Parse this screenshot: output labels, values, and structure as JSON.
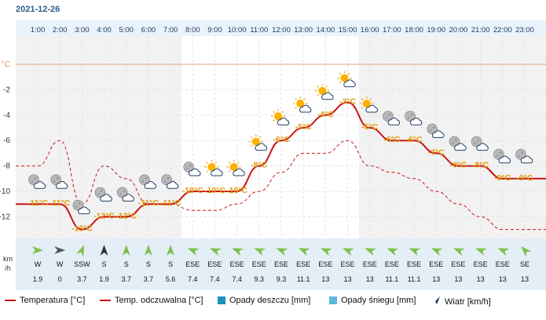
{
  "header": {
    "date": "2021-12-26"
  },
  "chart_data": {
    "type": "line",
    "hours": [
      "1:00",
      "2:00",
      "3:00",
      "4:00",
      "5:00",
      "6:00",
      "7:00",
      "8:00",
      "9:00",
      "10:00",
      "11:00",
      "12:00",
      "13:00",
      "14:00",
      "15:00",
      "16:00",
      "17:00",
      "18:00",
      "19:00",
      "20:00",
      "21:00",
      "22:00",
      "23:00"
    ],
    "y_unit": "°C",
    "y_ticks": [
      -2,
      -4,
      -6,
      -8,
      -10,
      -12
    ],
    "ylim": [
      -14.2,
      0
    ],
    "series": [
      {
        "name": "Temperatura [°C]",
        "style": "solid",
        "color": "#c81414",
        "values": [
          -11,
          -11,
          -13,
          -12,
          -12,
          -11,
          -11,
          -10,
          -10,
          -10,
          -8,
          -6,
          -5,
          -4,
          -3,
          -5,
          -6,
          -6,
          -7,
          -8,
          -8,
          -9,
          -9
        ]
      },
      {
        "name": "Temp. odczuwalna [°C]",
        "style": "dashed",
        "color": "#c81414",
        "values": [
          -8,
          -6,
          -11,
          -8,
          -9,
          -11,
          -11,
          -11.5,
          -11.5,
          -11,
          -10,
          -8.5,
          -7,
          -7,
          -6,
          -8,
          -8.5,
          -9,
          -10,
          -11,
          -12,
          -13,
          -13
        ]
      }
    ],
    "temp_labels": [
      "-11°C",
      "-11°C",
      "-13°C",
      "-12°C",
      "-12°C",
      "-11°C",
      "-11°C",
      "-10°C",
      "-10°C",
      "-10°C",
      "-8°C",
      "-6°C",
      "-5°C",
      "-4°C",
      "-3°C",
      "-5°C",
      "-6°C",
      "-6°C",
      "-7°C",
      "-8°C",
      "-8°C",
      "-9°C",
      "-9°C"
    ],
    "icons": [
      "moon-cloud-icon",
      "moon-cloud-icon",
      "moon-cloud-icon",
      "moon-cloud-icon",
      "moon-cloud-icon",
      "moon-cloud-icon",
      "moon-cloud-icon",
      "moon-cloud-icon",
      "sun-cloud-icon",
      "sun-cloud-icon",
      "sun-cloud-icon",
      "sun-cloud-icon",
      "sun-cloud-icon",
      "sun-cloud-icon",
      "sun-cloud-icon",
      "sun-cloud-icon",
      "moon-cloud-icon",
      "moon-cloud-icon",
      "moon-cloud-icon",
      "moon-cloud-icon",
      "moon-cloud-icon",
      "moon-cloud-icon",
      "moon-cloud-icon"
    ],
    "wind": {
      "unit_label": [
        "km",
        "/h"
      ],
      "directions": [
        "W",
        "W",
        "SSW",
        "S",
        "S",
        "S",
        "S",
        "ESE",
        "ESE",
        "ESE",
        "ESE",
        "ESE",
        "ESE",
        "ESE",
        "ESE",
        "ESE",
        "ESE",
        "ESE",
        "ESE",
        "ESE",
        "ESE",
        "ESE",
        "SE"
      ],
      "speeds": [
        "1.9",
        "0",
        "3.7",
        "1.9",
        "3.7",
        "3.7",
        "5.6",
        "7.4",
        "7.4",
        "7.4",
        "9.3",
        "9.3",
        "11.1",
        "13",
        "13",
        "13",
        "11.1",
        "11.1",
        "13",
        "13",
        "13",
        "13",
        "13"
      ]
    },
    "day_band_hours": [
      7.5,
      15.5
    ]
  },
  "legend": {
    "temp": "Temperatura [°C]",
    "feels": "Temp. odczuwalna [°C]",
    "rain": "Opady deszczu [mm]",
    "snow": "Opady śniegu [mm]",
    "wind": "Wiatr [km/h]"
  },
  "colors": {
    "temp": "#c81414",
    "rain": "#1f8fbf",
    "snow": "#5bb8d8",
    "wind": "#1f3c63",
    "arrow": "#7cc04a",
    "icon_sun": "#ffb000",
    "icon_moon": "#9a9a9a"
  }
}
